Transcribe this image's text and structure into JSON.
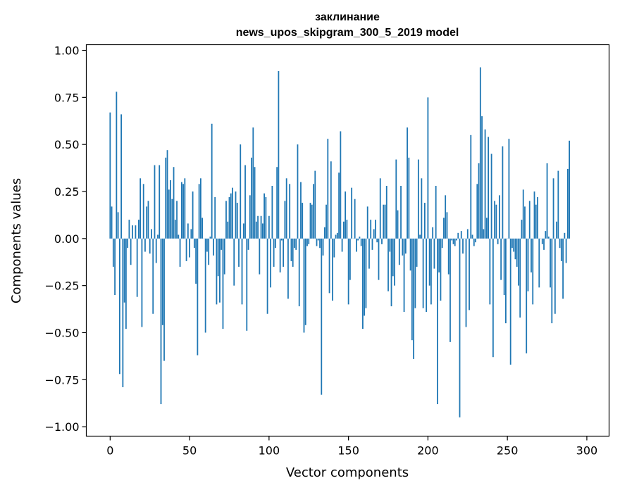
{
  "chart_data": {
    "type": "bar",
    "title_line1": "заклинание",
    "title_line2": "news_upos_skipgram_300_5_2019 model",
    "xlabel": "Vector components",
    "ylabel": "Components values",
    "xlim": [
      -15,
      314
    ],
    "ylim": [
      -1.05,
      1.03
    ],
    "xticks": [
      0,
      50,
      100,
      150,
      200,
      250,
      300
    ],
    "xtick_labels": [
      "0",
      "50",
      "100",
      "150",
      "200",
      "250",
      "300"
    ],
    "yticks": [
      1.0,
      0.75,
      0.5,
      0.25,
      0.0,
      -0.25,
      -0.5,
      -0.75,
      -1.0
    ],
    "ytick_labels": [
      "1.00",
      "0.75",
      "0.50",
      "0.25",
      "0.00",
      "−0.25",
      "−0.50",
      "−0.75",
      "−1.00"
    ],
    "bar_color": "#1f77b4",
    "grid": false,
    "values": [
      0.67,
      0.17,
      -0.15,
      -0.3,
      0.78,
      0.14,
      -0.72,
      0.66,
      -0.79,
      -0.34,
      -0.48,
      -0.05,
      0.1,
      -0.14,
      0.07,
      0.0,
      0.07,
      -0.31,
      0.1,
      0.32,
      -0.47,
      0.29,
      -0.07,
      0.17,
      0.2,
      -0.08,
      0.05,
      -0.4,
      0.39,
      -0.13,
      0.02,
      0.39,
      -0.88,
      -0.46,
      -0.65,
      0.43,
      0.47,
      0.26,
      0.31,
      0.21,
      0.38,
      0.1,
      0.2,
      0.02,
      -0.15,
      0.3,
      0.29,
      0.32,
      -0.12,
      0.08,
      -0.1,
      0.05,
      0.25,
      -0.05,
      -0.24,
      -0.62,
      0.29,
      0.32,
      0.11,
      0.0,
      -0.5,
      -0.07,
      -0.14,
      0.01,
      0.61,
      -0.09,
      0.22,
      -0.35,
      -0.2,
      -0.34,
      -0.06,
      -0.48,
      -0.19,
      0.2,
      0.09,
      0.22,
      0.24,
      0.27,
      -0.25,
      0.25,
      0.19,
      -0.15,
      0.5,
      -0.35,
      0.08,
      0.39,
      -0.49,
      -0.06,
      0.23,
      0.43,
      0.59,
      0.38,
      0.09,
      0.12,
      -0.19,
      0.12,
      0.08,
      0.24,
      0.22,
      -0.4,
      0.12,
      -0.26,
      0.28,
      -0.15,
      -0.05,
      0.38,
      0.89,
      -0.18,
      -0.01,
      -0.15,
      0.2,
      0.32,
      -0.32,
      0.29,
      -0.12,
      -0.15,
      -0.05,
      -0.06,
      0.5,
      -0.36,
      0.3,
      0.19,
      -0.5,
      -0.46,
      -0.04,
      -0.03,
      0.19,
      0.18,
      0.29,
      0.36,
      -0.04,
      -0.01,
      -0.05,
      -0.83,
      -0.09,
      0.06,
      0.18,
      0.53,
      -0.29,
      0.41,
      -0.33,
      -0.1,
      0.02,
      0.03,
      0.35,
      0.57,
      -0.07,
      0.09,
      0.25,
      0.1,
      -0.35,
      -0.22,
      0.27,
      0.0,
      0.21,
      -0.07,
      -0.01,
      0.01,
      -0.04,
      -0.48,
      -0.41,
      -0.37,
      0.17,
      -0.16,
      0.1,
      -0.06,
      0.05,
      0.1,
      -0.02,
      -0.22,
      0.32,
      -0.03,
      0.18,
      0.18,
      0.28,
      -0.28,
      -0.07,
      -0.36,
      -0.2,
      -0.25,
      0.42,
      0.15,
      -0.14,
      0.28,
      -0.09,
      -0.39,
      -0.08,
      0.59,
      0.43,
      -0.17,
      -0.54,
      -0.64,
      -0.37,
      -0.15,
      0.42,
      0.02,
      0.32,
      -0.37,
      0.19,
      -0.39,
      0.75,
      -0.25,
      -0.35,
      0.06,
      -0.16,
      0.28,
      -0.88,
      -0.18,
      -0.33,
      -0.05,
      0.11,
      0.23,
      0.14,
      -0.19,
      -0.55,
      -0.01,
      -0.03,
      -0.04,
      -0.01,
      0.03,
      -0.95,
      0.04,
      -0.08,
      0.0,
      -0.47,
      0.05,
      -0.38,
      0.55,
      0.02,
      -0.04,
      -0.02,
      0.29,
      0.4,
      0.91,
      0.65,
      0.05,
      0.58,
      0.11,
      0.54,
      -0.35,
      0.45,
      -0.63,
      0.2,
      0.18,
      -0.03,
      0.23,
      -0.22,
      0.49,
      -0.3,
      -0.45,
      0.0,
      0.53,
      -0.67,
      -0.05,
      -0.07,
      -0.11,
      -0.15,
      -0.25,
      -0.42,
      0.1,
      0.26,
      0.17,
      -0.61,
      -0.28,
      0.2,
      -0.18,
      -0.35,
      0.25,
      0.18,
      0.22,
      -0.26,
      0.0,
      -0.03,
      -0.06,
      0.04,
      0.4,
      0.01,
      -0.26,
      -0.45,
      0.32,
      -0.4,
      0.09,
      0.36,
      -0.05,
      -0.12,
      -0.32,
      0.03,
      -0.13,
      0.37,
      0.52
    ]
  }
}
